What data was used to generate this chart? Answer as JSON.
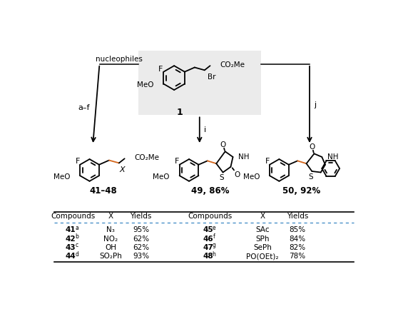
{
  "bg_color": "#ffffff",
  "gray_box_color": "#ebebeb",
  "table_header": [
    "Compounds",
    "X",
    "Yields",
    "Compounds",
    "X",
    "Yields"
  ],
  "table_rows": [
    [
      "41",
      "a",
      "N₃",
      "95%",
      "45",
      "e",
      "SAc",
      "85%"
    ],
    [
      "42",
      "b",
      "NO₂",
      "62%",
      "46",
      "f",
      "SPh",
      "84%"
    ],
    [
      "43",
      "c",
      "OH",
      "62%",
      "47",
      "g",
      "SePh",
      "82%"
    ],
    [
      "44",
      "d",
      "SO₂Ph",
      "93%",
      "48",
      "h",
      "PO(OEt)₂",
      "78%"
    ]
  ],
  "compound_labels": [
    "41–48",
    "49, 86%",
    "50, 92%"
  ],
  "orange_color": "#d4651a",
  "label_left": "a–f",
  "label_mid": "i",
  "label_right": "j",
  "nucleophiles_label": "nucleophiles"
}
